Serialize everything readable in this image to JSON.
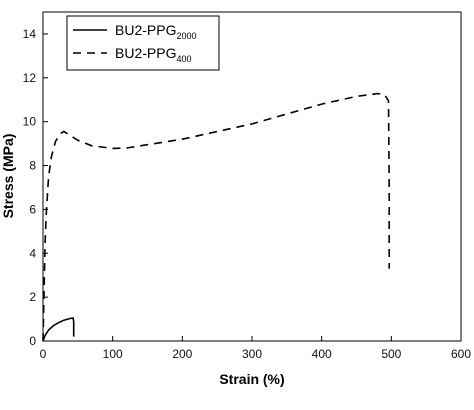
{
  "chart_data": {
    "type": "line",
    "xlabel": "Strain (%)",
    "ylabel": "Stress (MPa)",
    "xlim": [
      0,
      600
    ],
    "ylim": [
      0,
      15
    ],
    "xticks": [
      0,
      100,
      200,
      300,
      400,
      500,
      600
    ],
    "yticks": [
      0,
      2,
      4,
      6,
      8,
      10,
      12,
      14
    ],
    "legend_position": "top-left",
    "series": [
      {
        "name_main": "BU2-PPG",
        "name_sub": "2000",
        "line_style": "solid",
        "x": [
          0,
          3,
          8,
          15,
          22,
          30,
          38,
          43,
          44,
          44
        ],
        "y": [
          0,
          0.25,
          0.5,
          0.7,
          0.83,
          0.95,
          1.02,
          1.05,
          0.9,
          0.2
        ]
      },
      {
        "name_main": "BU2-PPG",
        "name_sub": "400",
        "line_style": "dashed",
        "x": [
          0,
          1,
          2,
          3,
          5,
          8,
          12,
          18,
          25,
          30,
          35,
          50,
          70,
          100,
          120,
          150,
          200,
          250,
          300,
          350,
          400,
          450,
          480,
          490,
          496,
          497,
          497
        ],
        "y": [
          0,
          1.5,
          3.0,
          4.5,
          6.0,
          7.5,
          8.4,
          9.1,
          9.45,
          9.55,
          9.45,
          9.15,
          8.9,
          8.78,
          8.8,
          8.95,
          9.2,
          9.55,
          9.9,
          10.35,
          10.8,
          11.15,
          11.28,
          11.25,
          10.95,
          7,
          3.3
        ]
      }
    ]
  }
}
